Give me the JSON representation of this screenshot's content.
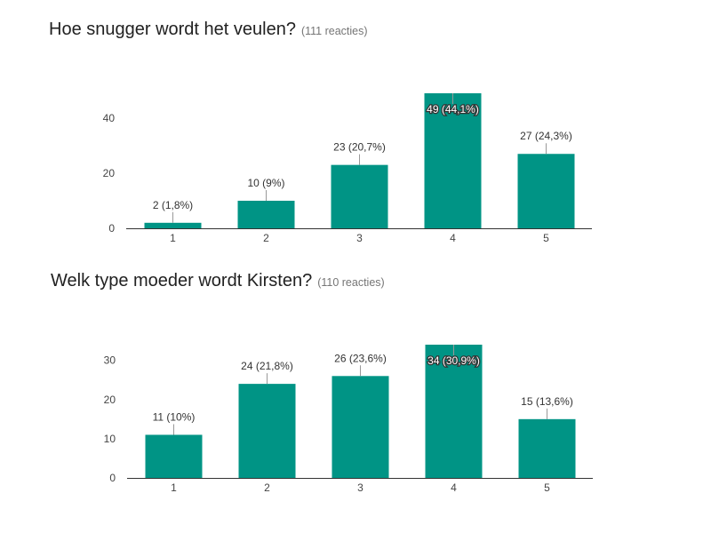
{
  "colors": {
    "bar": "#009485",
    "axis": "#333333",
    "leader": "#999999"
  },
  "chart_data": [
    {
      "type": "bar",
      "title": "Hoe snugger wordt het veulen?",
      "responses": "(111 reacties)",
      "categories": [
        "1",
        "2",
        "3",
        "4",
        "5"
      ],
      "values": [
        2,
        10,
        23,
        49,
        27
      ],
      "labels": [
        "2 (1,8%)",
        "10 (9%)",
        "23 (20,7%)",
        "49 (44,1%)",
        "27 (24,3%)"
      ],
      "yticks": [
        "0",
        "20",
        "40"
      ],
      "ytick_values": [
        0,
        20,
        40
      ],
      "ylim": [
        0,
        49
      ],
      "xlabel": "",
      "ylabel": "",
      "grid": false,
      "legend": "none"
    },
    {
      "type": "bar",
      "title": "Welk type moeder wordt Kirsten?",
      "responses": "(110 reacties)",
      "categories": [
        "1",
        "2",
        "3",
        "4",
        "5"
      ],
      "values": [
        11,
        24,
        26,
        34,
        15
      ],
      "labels": [
        "11 (10%)",
        "24 (21,8%)",
        "26 (23,6%)",
        "34 (30,9%)",
        "15 (13,6%)"
      ],
      "yticks": [
        "0",
        "10",
        "20",
        "30"
      ],
      "ytick_values": [
        0,
        10,
        20,
        30
      ],
      "ylim": [
        0,
        34
      ],
      "xlabel": "",
      "ylabel": "",
      "grid": false,
      "legend": "none"
    }
  ]
}
